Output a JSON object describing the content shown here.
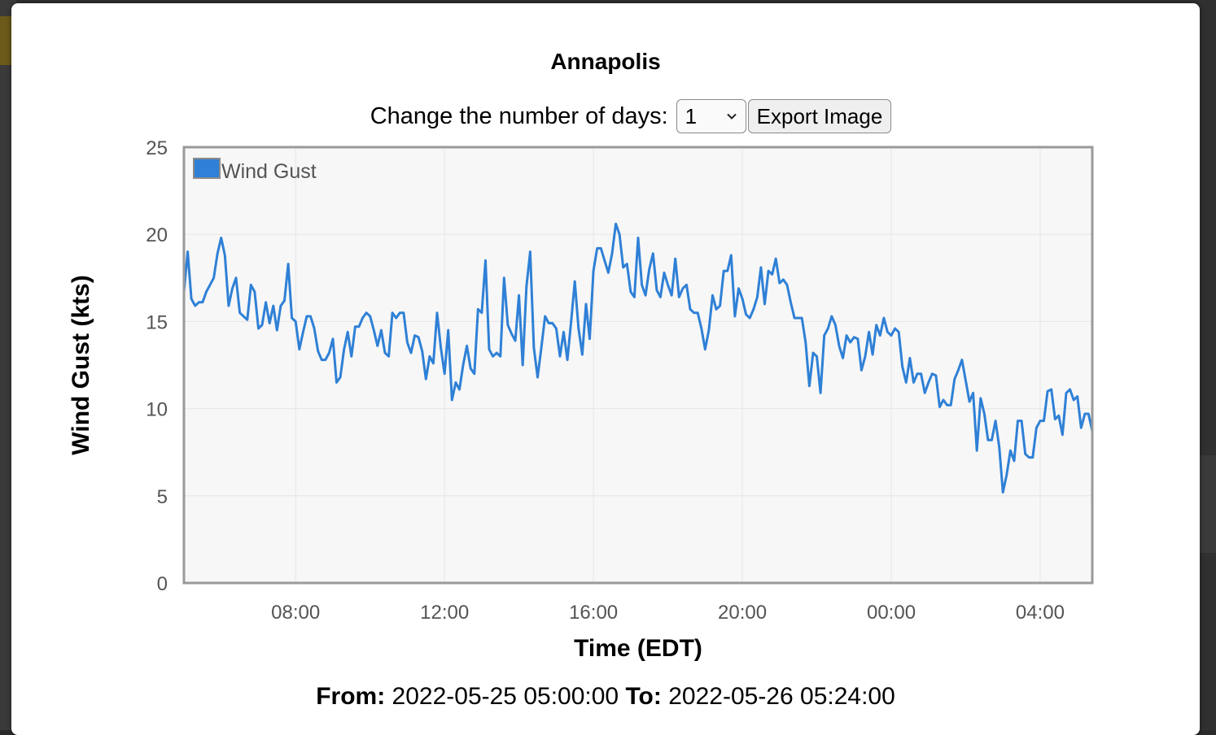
{
  "title": "Annapolis",
  "controls": {
    "days_label": "Change the number of days:",
    "days_value": "1",
    "export_label": "Export Image"
  },
  "footer": {
    "from_label": "From:",
    "from_value": "2022-05-25 05:00:00",
    "to_label": "To:",
    "to_value": "2022-05-26 05:24:00"
  },
  "colors": {
    "series": "#2f80d6",
    "plot_background": "#f7f7f7",
    "plot_border": "#9a9a9a"
  },
  "chart_data": {
    "type": "line",
    "title": "",
    "xlabel": "Time (EDT)",
    "ylabel": "Wind Gust (kts)",
    "xlim": [
      "2022-05-25 05:00",
      "2022-05-26 05:24"
    ],
    "ylim": [
      0,
      25
    ],
    "x_ticks": [
      "08:00",
      "12:00",
      "16:00",
      "20:00",
      "00:00",
      "04:00"
    ],
    "y_ticks": [
      0,
      5,
      10,
      15,
      20,
      25
    ],
    "grid": true,
    "legend": "top-left",
    "series": [
      {
        "name": "Wind Gust",
        "color": "#2f80d6",
        "y": [
          16.7,
          19.0,
          16.3,
          15.9,
          16.1,
          16.1,
          16.7,
          17.1,
          17.5,
          18.9,
          19.8,
          18.8,
          15.9,
          16.9,
          17.5,
          15.5,
          15.3,
          15.1,
          17.1,
          16.7,
          14.6,
          14.8,
          16.1,
          14.9,
          15.9,
          14.5,
          15.9,
          16.2,
          18.3,
          15.2,
          15.0,
          13.4,
          14.4,
          15.3,
          15.3,
          14.6,
          13.3,
          12.8,
          12.8,
          13.2,
          14.0,
          11.5,
          11.8,
          13.4,
          14.4,
          13.0,
          14.7,
          14.7,
          15.2,
          15.5,
          15.3,
          14.5,
          13.6,
          14.5,
          13.2,
          13.0,
          15.5,
          15.2,
          15.5,
          15.5,
          13.8,
          13.2,
          14.2,
          14.1,
          13.3,
          11.7,
          13.0,
          12.6,
          15.5,
          13.5,
          12.0,
          14.5,
          10.5,
          11.5,
          11.1,
          12.5,
          13.6,
          12.3,
          12.0,
          15.7,
          15.5,
          18.5,
          13.4,
          13.0,
          13.2,
          13.0,
          17.5,
          14.8,
          14.3,
          13.9,
          16.5,
          12.5,
          17.0,
          19.0,
          13.5,
          11.8,
          13.5,
          15.3,
          14.9,
          14.9,
          14.6,
          13.0,
          14.4,
          12.8,
          15.0,
          17.3,
          14.6,
          13.1,
          16.0,
          14.0,
          17.9,
          19.2,
          19.2,
          18.5,
          17.8,
          18.9,
          20.6,
          20.0,
          18.1,
          18.3,
          16.7,
          16.4,
          19.8,
          17.1,
          16.5,
          18.0,
          18.9,
          16.8,
          16.4,
          17.8,
          17.1,
          16.5,
          18.6,
          16.4,
          16.9,
          17.1,
          15.7,
          15.5,
          15.5,
          14.6,
          13.4,
          14.5,
          16.5,
          15.7,
          15.9,
          17.9,
          17.9,
          18.8,
          15.3,
          16.9,
          16.3,
          15.4,
          15.2,
          15.7,
          16.4,
          18.1,
          16.0,
          17.9,
          17.7,
          18.6,
          17.2,
          17.4,
          17.1,
          16.1,
          15.2,
          15.2,
          15.2,
          13.8,
          11.3,
          13.2,
          13.0,
          10.9,
          14.2,
          14.6,
          15.3,
          14.8,
          13.6,
          12.9,
          14.2,
          13.8,
          14.1,
          14.0,
          12.2,
          13.0,
          14.4,
          13.1,
          14.8,
          14.2,
          15.2,
          14.4,
          14.2,
          14.6,
          14.4,
          12.4,
          11.5,
          12.9,
          11.5,
          12.0,
          12.0,
          10.9,
          11.5,
          12.0,
          11.9,
          10.1,
          10.5,
          10.2,
          10.2,
          11.7,
          12.2,
          12.8,
          11.6,
          10.4,
          10.9,
          7.6,
          10.6,
          9.7,
          8.2,
          8.2,
          9.3,
          7.8,
          5.2,
          6.2,
          7.6,
          7.0,
          9.3,
          9.3,
          7.4,
          7.2,
          7.2,
          8.9,
          9.3,
          9.3,
          11.0,
          11.1,
          9.4,
          9.6,
          8.5,
          10.9,
          11.1,
          10.5,
          10.7,
          8.9,
          9.7,
          9.7,
          8.7
        ]
      }
    ]
  }
}
